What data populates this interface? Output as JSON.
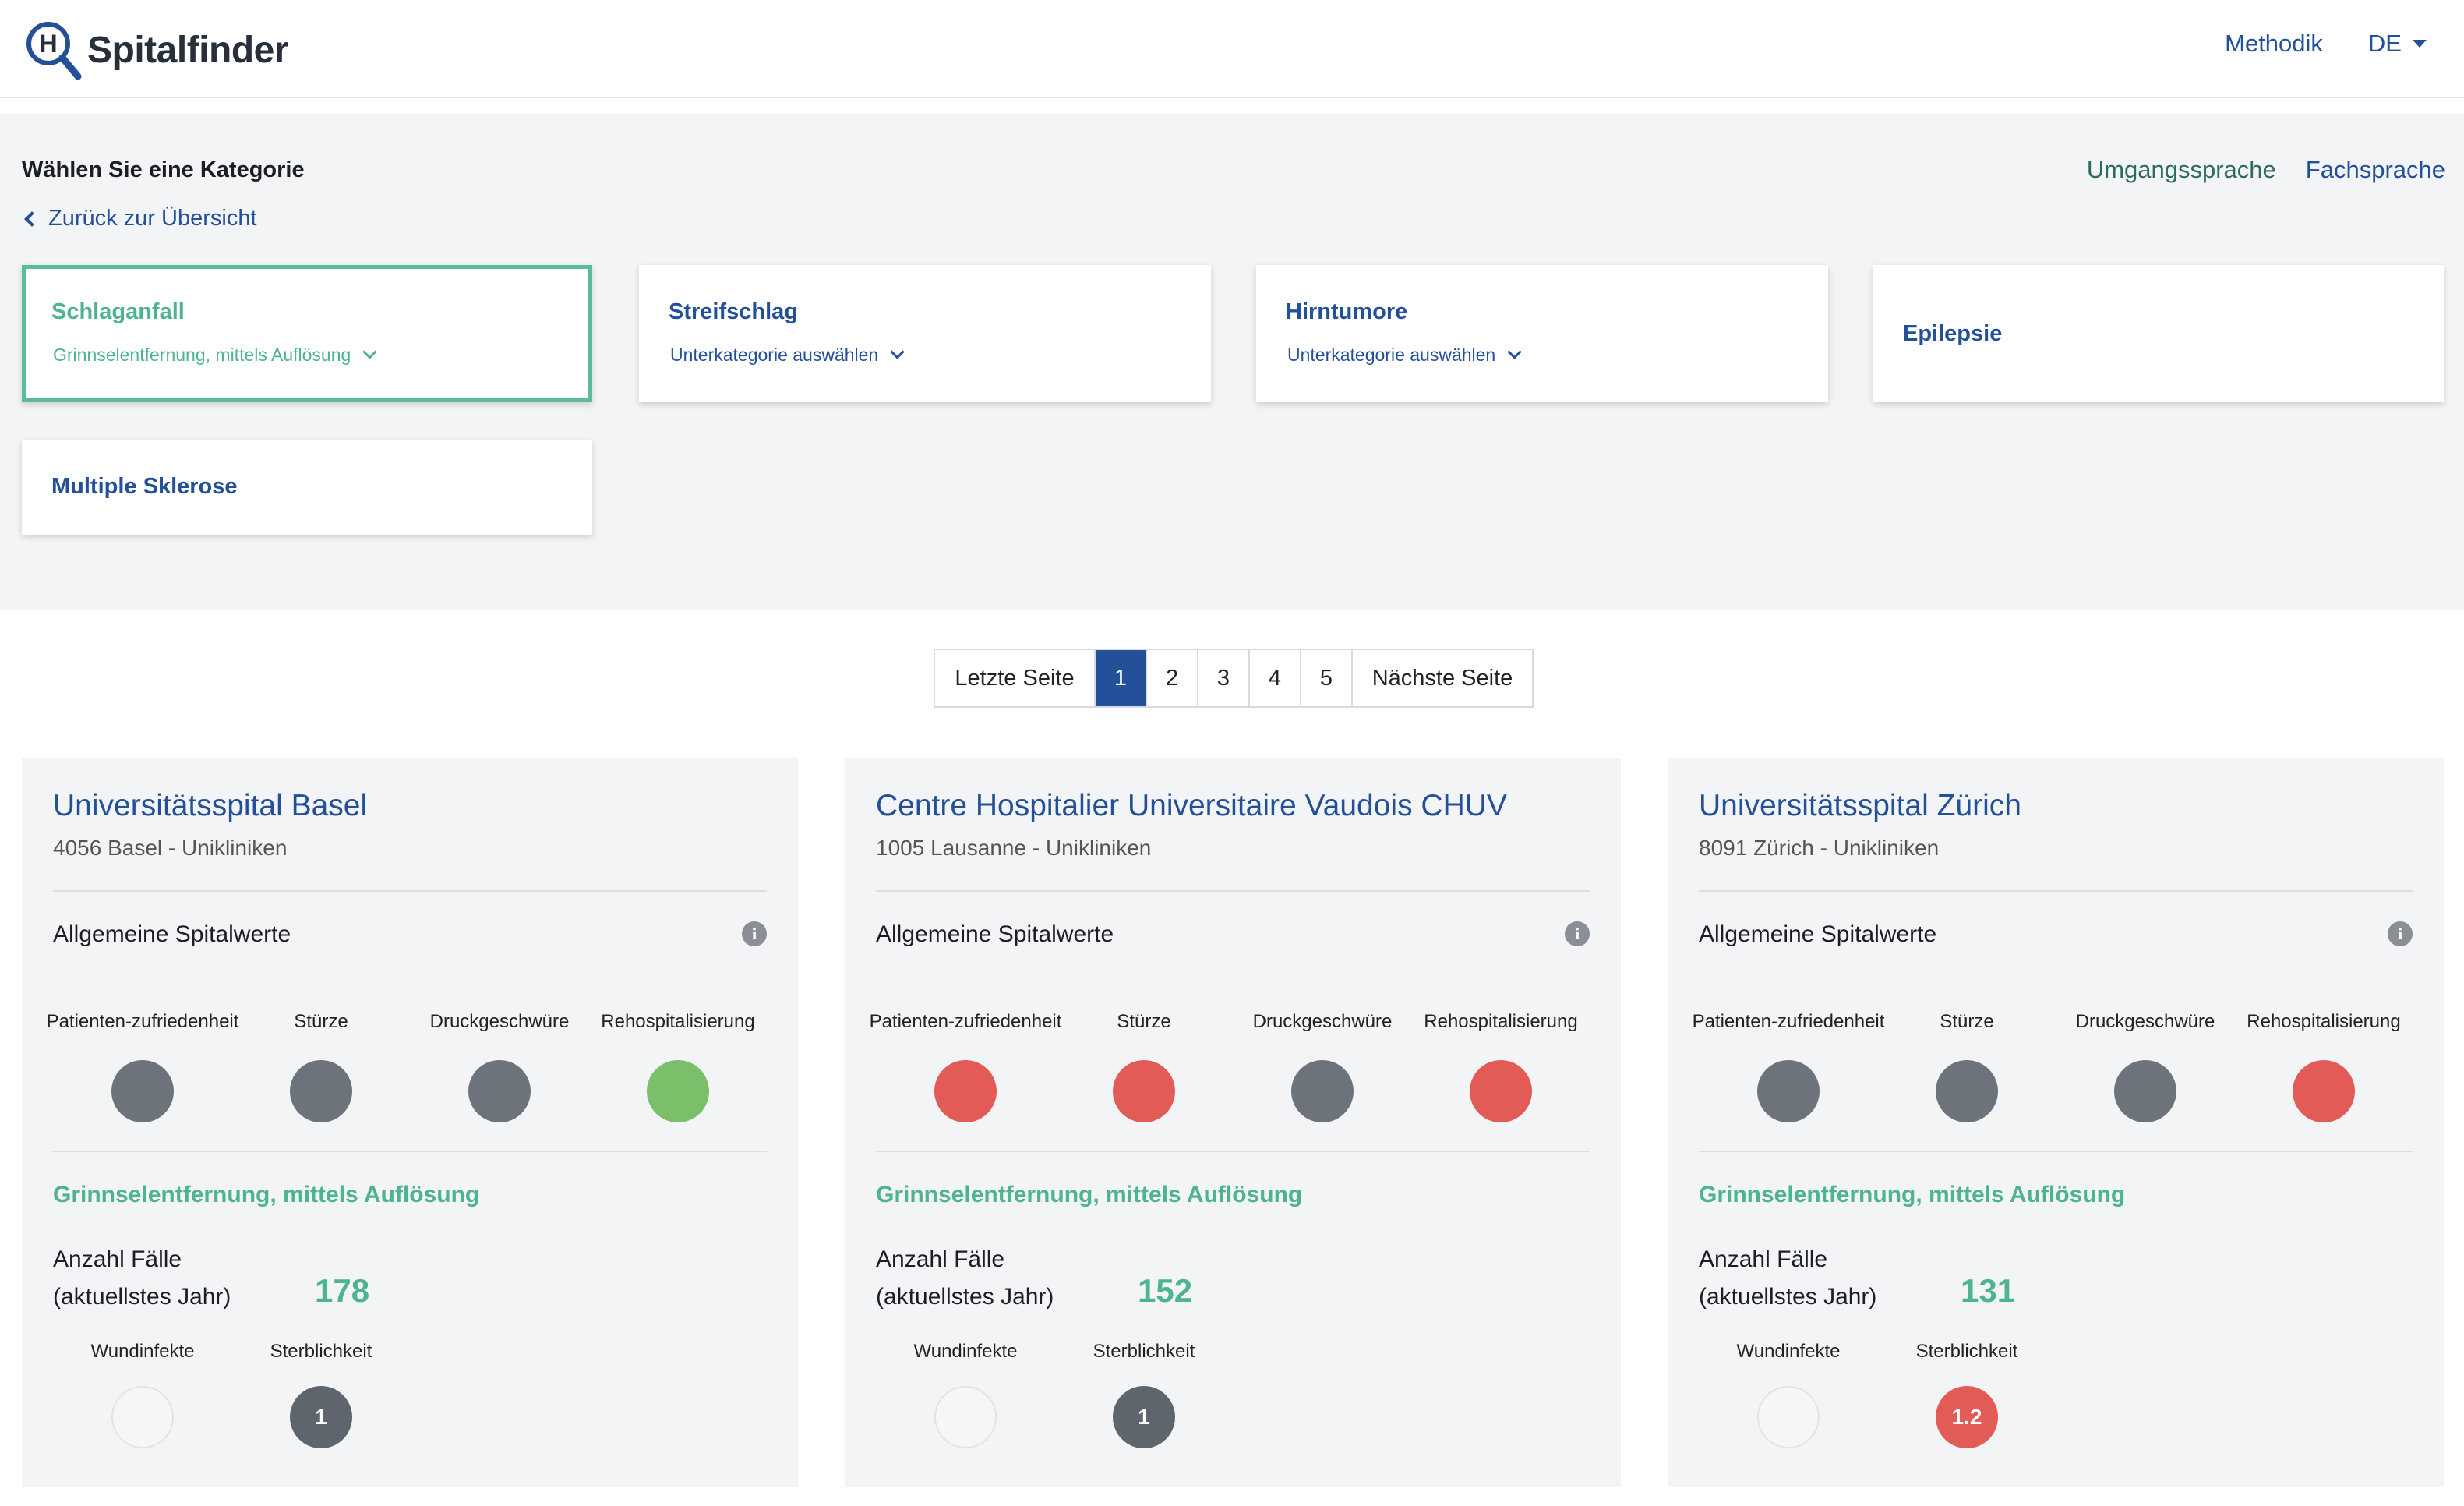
{
  "header": {
    "logo_text": "Spitalfinder",
    "nav": {
      "method_label": "Methodik",
      "language": "DE"
    }
  },
  "category": {
    "title": "Wählen Sie eine Kategorie",
    "back_label": "Zurück zur Übersicht",
    "language_toggle": {
      "plain": "Umgangssprache",
      "technical": "Fachsprache"
    },
    "cards": [
      {
        "name": "Schlaganfall",
        "sub": "Grinnselentfernung, mittels Auflösung",
        "selected": true
      },
      {
        "name": "Streifschlag",
        "sub": "Unterkategorie auswählen"
      },
      {
        "name": "Hirntumore",
        "sub": "Unterkategorie auswählen"
      },
      {
        "name": "Epilepsie"
      },
      {
        "name": "Multiple Sklerose"
      }
    ]
  },
  "pagination": {
    "prev_label": "Letzte Seite",
    "pages": [
      "1",
      "2",
      "3",
      "4",
      "5"
    ],
    "current": "1",
    "next_label": "Nächste Seite"
  },
  "hospitals": [
    {
      "name": "Universitätsspital Basel",
      "location": "4056 Basel - Unikliniken",
      "general_title": "Allgemeine Spitalwerte",
      "metrics": [
        {
          "label_line1": "Patienten-",
          "label_line2": "zufriedenheit",
          "status": "grey"
        },
        {
          "label_line1": "",
          "label_line2": "Stürze",
          "status": "grey"
        },
        {
          "label_line1": "",
          "label_line2": "Druckgeschwüre",
          "status": "grey"
        },
        {
          "label_line1": "",
          "label_line2": "Rehospitalisierung",
          "status": "green"
        }
      ],
      "procedure_title": "Grinnselentfernung, mittels Auflösung",
      "cases_label_1": "Anzahl Fälle",
      "cases_label_2": "(aktuellstes Jahr)",
      "cases": "178",
      "kpis": [
        {
          "label": "Wundinfekte",
          "value": "",
          "status": "empty"
        },
        {
          "label": "Sterblichkeit",
          "value": "1",
          "status": "grey"
        }
      ]
    },
    {
      "name": "Centre Hospitalier Universitaire Vaudois CHUV",
      "location": "1005 Lausanne - Unikliniken",
      "general_title": "Allgemeine Spitalwerte",
      "metrics": [
        {
          "label_line1": "Patienten-",
          "label_line2": "zufriedenheit",
          "status": "red"
        },
        {
          "label_line1": "",
          "label_line2": "Stürze",
          "status": "red"
        },
        {
          "label_line1": "",
          "label_line2": "Druckgeschwüre",
          "status": "grey"
        },
        {
          "label_line1": "",
          "label_line2": "Rehospitalisierung",
          "status": "red"
        }
      ],
      "procedure_title": "Grinnselentfernung, mittels Auflösung",
      "cases_label_1": "Anzahl Fälle",
      "cases_label_2": "(aktuellstes Jahr)",
      "cases": "152",
      "kpis": [
        {
          "label": "Wundinfekte",
          "value": "",
          "status": "empty"
        },
        {
          "label": "Sterblichkeit",
          "value": "1",
          "status": "grey"
        }
      ]
    },
    {
      "name": "Universitätsspital Zürich",
      "location": "8091 Zürich - Unikliniken",
      "general_title": "Allgemeine Spitalwerte",
      "metrics": [
        {
          "label_line1": "Patienten-",
          "label_line2": "zufriedenheit",
          "status": "grey"
        },
        {
          "label_line1": "",
          "label_line2": "Stürze",
          "status": "grey"
        },
        {
          "label_line1": "",
          "label_line2": "Druckgeschwüre",
          "status": "grey"
        },
        {
          "label_line1": "",
          "label_line2": "Rehospitalisierung",
          "status": "red"
        }
      ],
      "procedure_title": "Grinnselentfernung, mittels Auflösung",
      "cases_label_1": "Anzahl Fälle",
      "cases_label_2": "(aktuellstes Jahr)",
      "cases": "131",
      "kpis": [
        {
          "label": "Wundinfekte",
          "value": "",
          "status": "empty"
        },
        {
          "label": "Sterblichkeit",
          "value": "1.2",
          "status": "red"
        }
      ]
    }
  ],
  "colors": {
    "brand_blue": "#24509a",
    "accent_green": "#4db48d",
    "status_grey": "#6c737b",
    "status_green": "#7cbf6b",
    "status_red": "#e25b57"
  },
  "icons": {
    "logo": "hospital-magnifier-icon",
    "info": "info-icon",
    "back": "chevron-left-icon",
    "dropdown": "chevron-down-icon"
  }
}
